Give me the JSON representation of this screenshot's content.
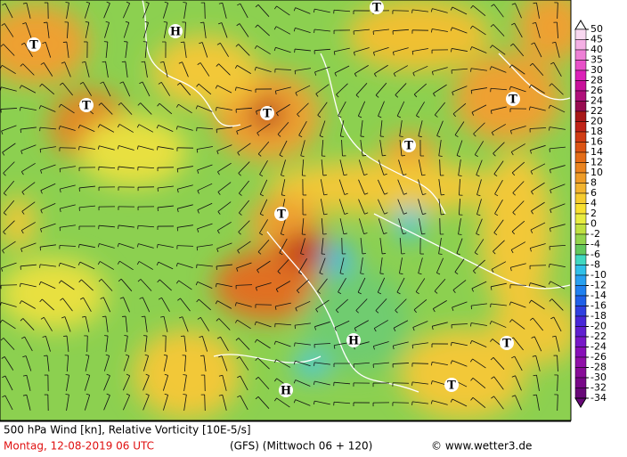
{
  "map": {
    "pressure_centers": [
      "T",
      "H",
      "T",
      "T",
      "T",
      "T",
      "T",
      "T",
      "H",
      "T",
      "T",
      "H"
    ],
    "colorbar": [
      {
        "label": "50",
        "color": "#fdfdfd"
      },
      {
        "label": "45",
        "color": "#f8d8f0"
      },
      {
        "label": "40",
        "color": "#f4b0e4"
      },
      {
        "label": "35",
        "color": "#ee80d6"
      },
      {
        "label": "30",
        "color": "#e850c8"
      },
      {
        "label": "28",
        "color": "#dc20b8"
      },
      {
        "label": "26",
        "color": "#c8109a"
      },
      {
        "label": "24",
        "color": "#b0107a"
      },
      {
        "label": "22",
        "color": "#980c50"
      },
      {
        "label": "20",
        "color": "#a81818"
      },
      {
        "label": "18",
        "color": "#c02418"
      },
      {
        "label": "16",
        "color": "#d03c14"
      },
      {
        "label": "14",
        "color": "#dc5414"
      },
      {
        "label": "12",
        "color": "#e46c18"
      },
      {
        "label": "10",
        "color": "#ea8420"
      },
      {
        "label": "8",
        "color": "#ee9c28"
      },
      {
        "label": "6",
        "color": "#f2b430"
      },
      {
        "label": "4",
        "color": "#f6cc30"
      },
      {
        "label": "2",
        "color": "#f8e030"
      },
      {
        "label": "0",
        "color": "#e8ec40"
      },
      {
        "label": "-2",
        "color": "#c0e040"
      },
      {
        "label": "-4",
        "color": "#94d44c"
      },
      {
        "label": "-6",
        "color": "#64c85c"
      },
      {
        "label": "-8",
        "color": "#40d8c0"
      },
      {
        "label": "-10",
        "color": "#30c0e8"
      },
      {
        "label": "-12",
        "color": "#28a0f0"
      },
      {
        "label": "-14",
        "color": "#2080f0"
      },
      {
        "label": "-16",
        "color": "#2060e8"
      },
      {
        "label": "-18",
        "color": "#3040e0"
      },
      {
        "label": "-20",
        "color": "#4828d8"
      },
      {
        "label": "-22",
        "color": "#6020d0"
      },
      {
        "label": "-24",
        "color": "#7818c8"
      },
      {
        "label": "-26",
        "color": "#8810b8"
      },
      {
        "label": "-28",
        "color": "#9010a8"
      },
      {
        "label": "-30",
        "color": "#880c98"
      },
      {
        "label": "-32",
        "color": "#780888"
      },
      {
        "label": "-34",
        "color": "#680878"
      }
    ]
  },
  "footer": {
    "title": "500 hPa Wind [kn], Relative Vorticity [10E-5/s]",
    "date": "Montag, 12-08-2019  06 UTC",
    "model": "(GFS)  (Mittwoch 06 + 120)",
    "credit": "© www.wetter3.de"
  }
}
